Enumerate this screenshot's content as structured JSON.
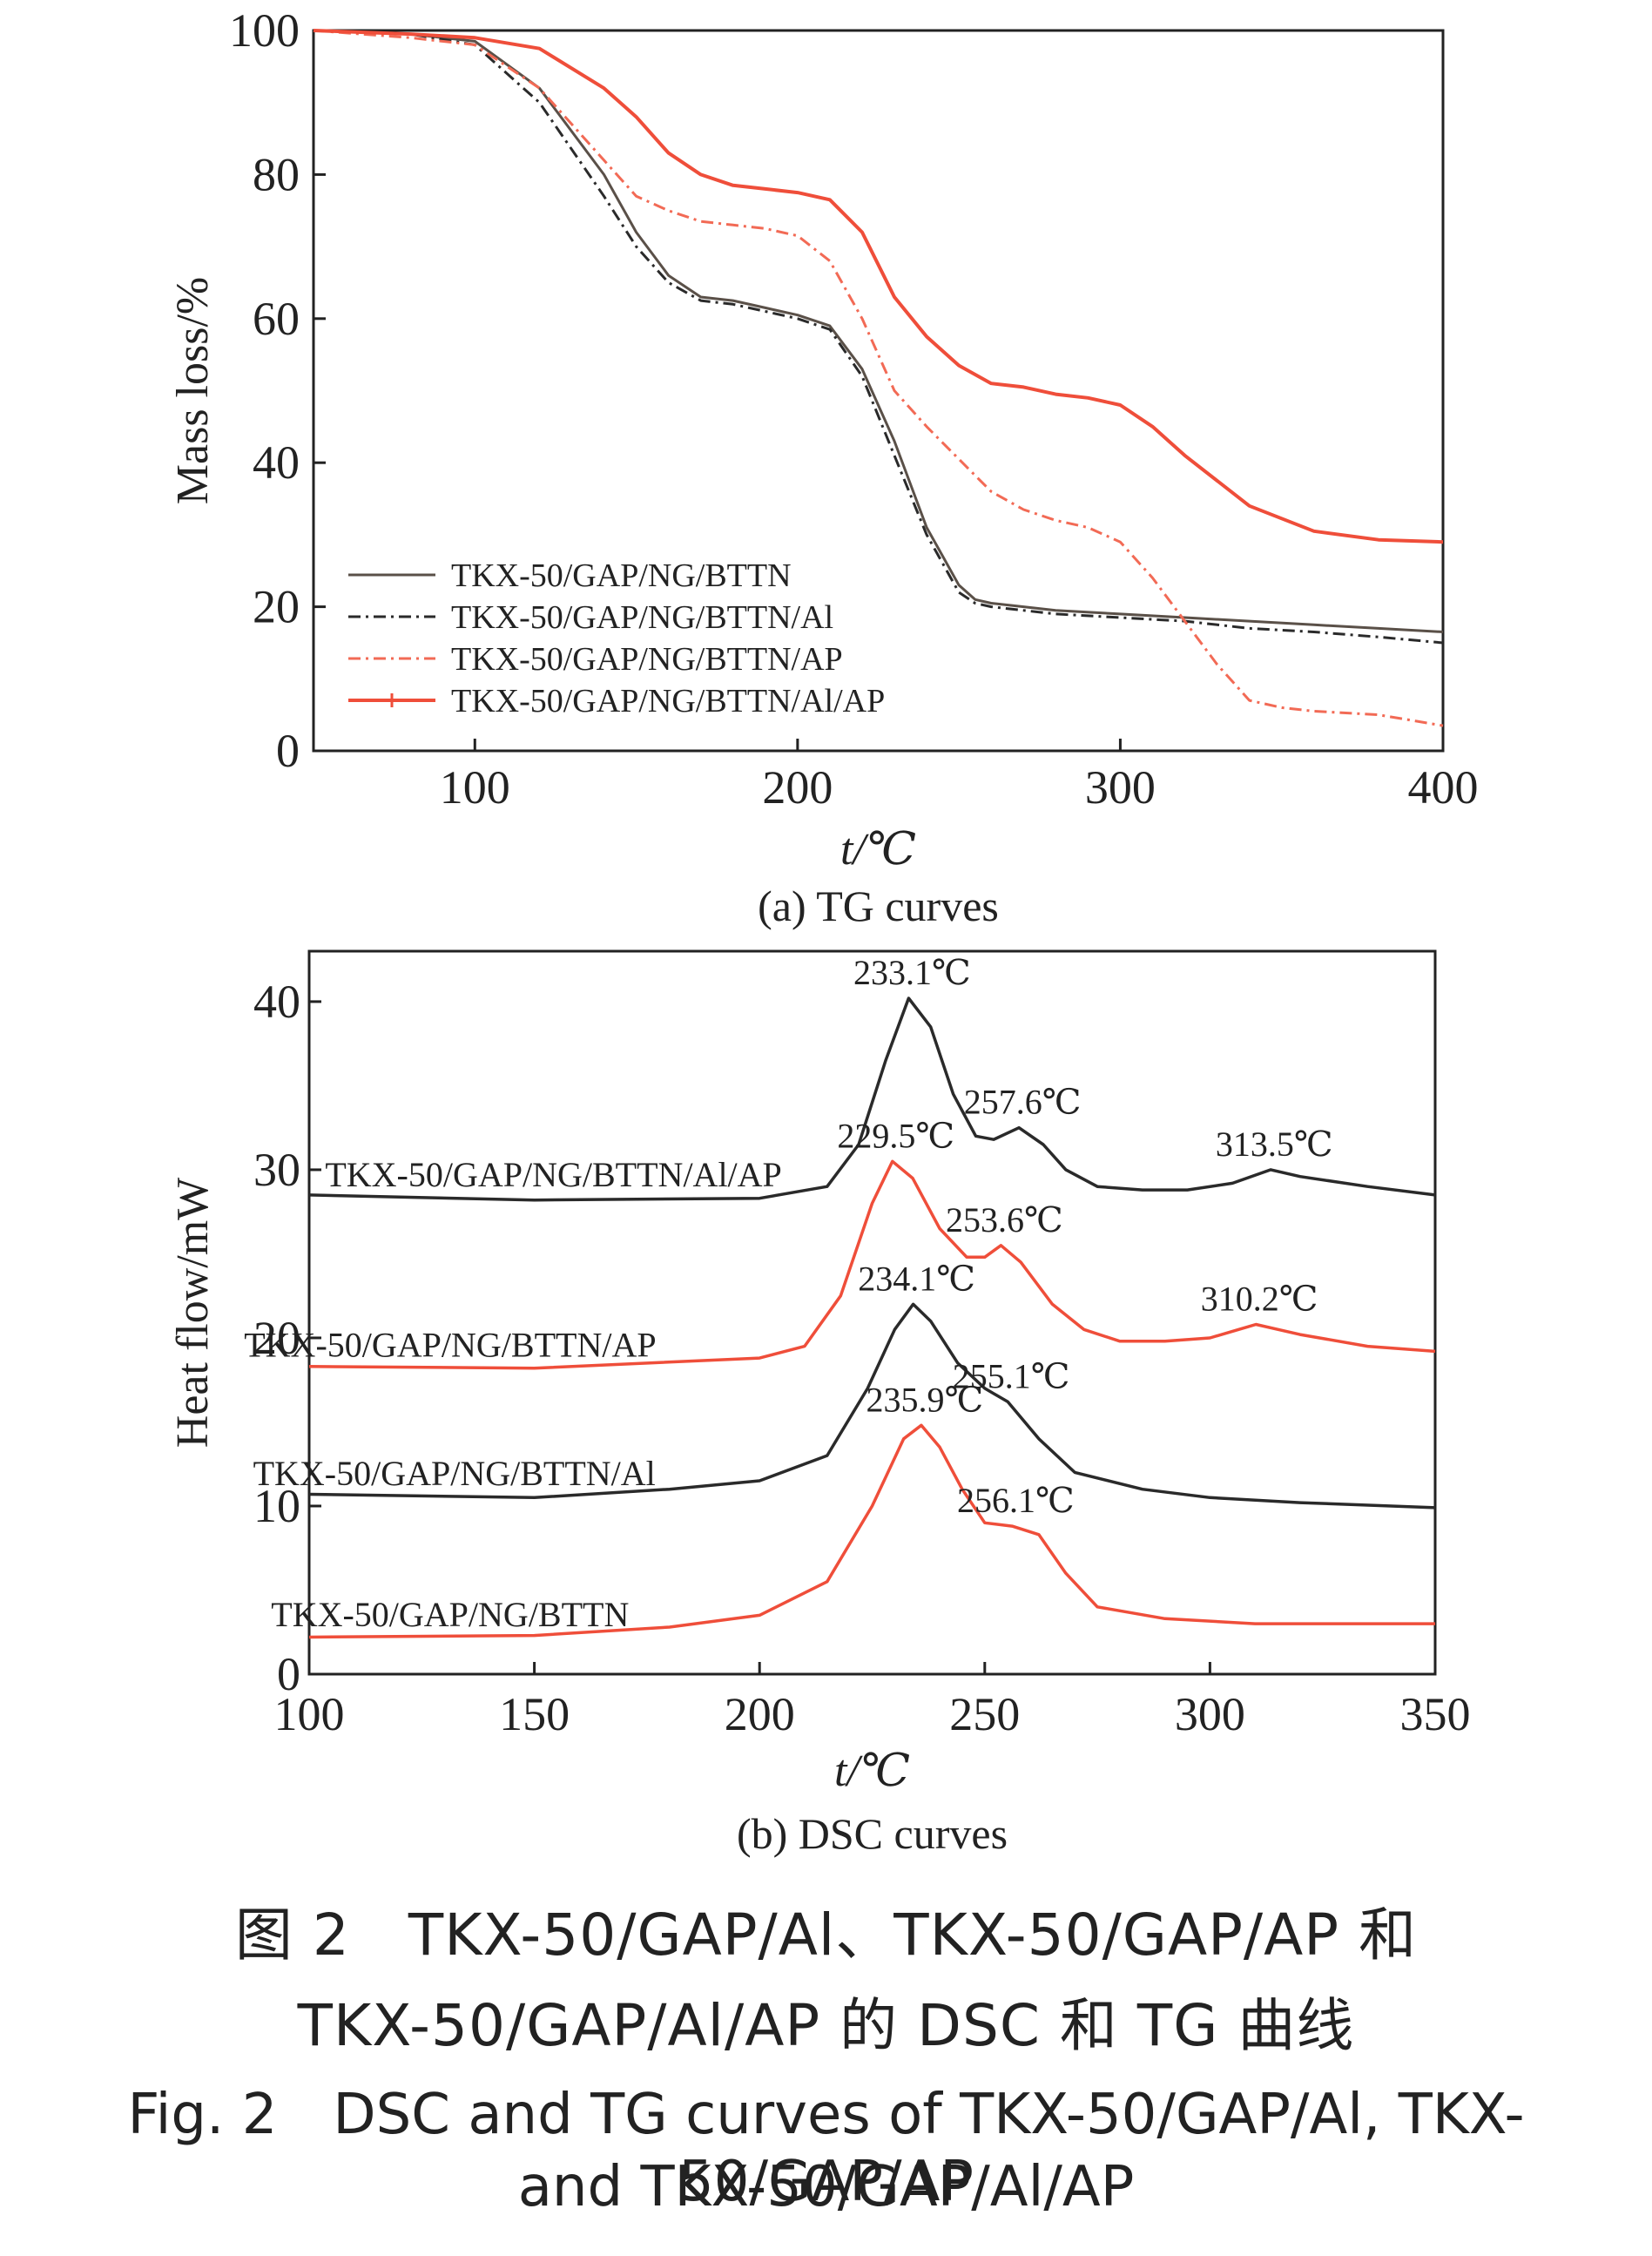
{
  "colors": {
    "axis": "#222222",
    "black": "#2a2a2a",
    "gray": "#5a5048",
    "red": "#ef4e3a",
    "light_red": "#f26a55"
  },
  "chart_data": [
    {
      "type": "line",
      "caption": "(a) TG curves",
      "xlabel": "t/℃",
      "ylabel": "Mass loss/%",
      "xlim": [
        50,
        400
      ],
      "ylim": [
        0,
        100
      ],
      "x_ticks": [
        100,
        200,
        300,
        400
      ],
      "y_ticks": [
        0,
        20,
        40,
        60,
        80,
        100
      ],
      "grid": false,
      "legend": "bottom-left",
      "series": [
        {
          "name": "TKX-50/GAP/NG/BTTN",
          "style": "solid",
          "color": "#5a5048",
          "x": [
            50,
            80,
            100,
            120,
            140,
            150,
            160,
            170,
            180,
            190,
            200,
            210,
            220,
            230,
            240,
            250,
            255,
            260,
            280,
            300,
            320,
            340,
            360,
            380,
            400
          ],
          "y": [
            100,
            99.5,
            98.5,
            92,
            80,
            72,
            66,
            63,
            62.5,
            61.5,
            60.5,
            59,
            53,
            43,
            31,
            23,
            21,
            20.5,
            19.5,
            19,
            18.5,
            18,
            17.5,
            17,
            16.5
          ]
        },
        {
          "name": "TKX-50/GAP/NG/BTTN/Al",
          "style": "dashdot",
          "color": "#2a2a2a",
          "x": [
            50,
            80,
            100,
            120,
            140,
            150,
            160,
            170,
            180,
            190,
            200,
            210,
            220,
            230,
            240,
            250,
            255,
            260,
            280,
            300,
            320,
            340,
            360,
            380,
            400
          ],
          "y": [
            100,
            99.5,
            98,
            90,
            77,
            70,
            65,
            62.5,
            62,
            61,
            60,
            58.5,
            52,
            41,
            30,
            22,
            20.5,
            20,
            19,
            18.5,
            18,
            17,
            16.5,
            15.8,
            15
          ]
        },
        {
          "name": "TKX-50/GAP/NG/BTTN/AP",
          "style": "dashdot",
          "color": "#f26a55",
          "x": [
            50,
            80,
            100,
            120,
            140,
            150,
            160,
            170,
            180,
            190,
            200,
            210,
            220,
            230,
            240,
            250,
            260,
            270,
            280,
            290,
            300,
            310,
            320,
            330,
            340,
            350,
            360,
            380,
            400
          ],
          "y": [
            100,
            99,
            98,
            92,
            82,
            77,
            75,
            73.5,
            73,
            72.5,
            71.5,
            68,
            60,
            50,
            45,
            40.5,
            36,
            33.5,
            32,
            31,
            29,
            24,
            18,
            12,
            7,
            6,
            5.5,
            5,
            3.5
          ]
        },
        {
          "name": "TKX-50/GAP/NG/BTTN/Al/AP",
          "style": "solid",
          "color": "#ef4e3a",
          "x": [
            50,
            80,
            100,
            120,
            140,
            150,
            160,
            170,
            180,
            190,
            200,
            210,
            220,
            230,
            240,
            250,
            260,
            270,
            280,
            290,
            300,
            310,
            320,
            340,
            360,
            380,
            400
          ],
          "y": [
            100,
            99.5,
            99,
            97.5,
            92,
            88,
            83,
            80,
            78.5,
            78,
            77.5,
            76.5,
            72,
            63,
            57.5,
            53.5,
            51,
            50.5,
            49.5,
            49,
            48,
            45,
            41,
            34,
            30.5,
            29.3,
            29
          ]
        }
      ]
    },
    {
      "type": "line",
      "caption": "(b) DSC curves",
      "xlabel": "t/℃",
      "ylabel": "Heat flow/mW",
      "xlim": [
        100,
        350
      ],
      "ylim": [
        0,
        43
      ],
      "x_ticks": [
        100,
        150,
        200,
        250,
        300,
        350
      ],
      "y_ticks": [
        0,
        10,
        20,
        30,
        40
      ],
      "grid": false,
      "series": [
        {
          "name": "TKX-50/GAP/NG/BTTN/Al/AP",
          "color": "#2a2a2a",
          "x": [
            100,
            150,
            200,
            215,
            222,
            228,
            233.1,
            238,
            243,
            248,
            252,
            257.6,
            263,
            268,
            275,
            285,
            295,
            305,
            313.5,
            320,
            335,
            350
          ],
          "y": [
            28.5,
            28.2,
            28.3,
            29,
            31.5,
            36.5,
            40.2,
            38.5,
            34.5,
            32,
            31.8,
            32.5,
            31.5,
            30,
            29,
            28.8,
            28.8,
            29.2,
            30,
            29.6,
            29,
            28.5
          ],
          "peaks": [
            {
              "x": 233.1,
              "label": "233.1℃"
            },
            {
              "x": 257.6,
              "label": "257.6℃"
            },
            {
              "x": 313.5,
              "label": "313.5℃"
            }
          ]
        },
        {
          "name": "TKX-50/GAP/NG/BTTN/AP",
          "color": "#ef4e3a",
          "x": [
            100,
            150,
            200,
            210,
            218,
            225,
            229.5,
            234,
            240,
            246,
            250,
            253.6,
            258,
            265,
            272,
            280,
            290,
            300,
            310.2,
            320,
            335,
            350
          ],
          "y": [
            18.3,
            18.2,
            18.8,
            19.5,
            22.5,
            28,
            30.5,
            29.5,
            26.5,
            24.8,
            24.8,
            25.5,
            24.5,
            22,
            20.5,
            19.8,
            19.8,
            20,
            20.8,
            20.2,
            19.5,
            19.2
          ],
          "peaks": [
            {
              "x": 229.5,
              "label": "229.5℃"
            },
            {
              "x": 253.6,
              "label": "253.6℃"
            },
            {
              "x": 310.2,
              "label": "310.2℃"
            }
          ]
        },
        {
          "name": "TKX-50/GAP/NG/BTTN/Al",
          "color": "#2a2a2a",
          "x": [
            100,
            150,
            180,
            200,
            215,
            224,
            230,
            234.1,
            238,
            244,
            250,
            255.1,
            262,
            270,
            285,
            300,
            320,
            350
          ],
          "y": [
            10.7,
            10.5,
            11,
            11.5,
            13,
            17,
            20.5,
            22,
            21,
            18.5,
            17,
            16.2,
            14,
            12,
            11,
            10.5,
            10.2,
            9.9
          ],
          "peaks": [
            {
              "x": 234.1,
              "label": "234.1℃"
            },
            {
              "x": 255.1,
              "label": "255.1℃"
            }
          ]
        },
        {
          "name": "TKX-50/GAP/NG/BTTN",
          "color": "#ef4e3a",
          "x": [
            100,
            150,
            180,
            200,
            215,
            225,
            232,
            235.9,
            240,
            245,
            250,
            256.1,
            262,
            268,
            275,
            290,
            310,
            330,
            350
          ],
          "y": [
            2.2,
            2.3,
            2.8,
            3.5,
            5.5,
            10,
            14,
            14.8,
            13.5,
            11,
            9,
            8.8,
            8.3,
            6,
            4,
            3.3,
            3,
            3,
            3
          ],
          "peaks": [
            {
              "x": 235.9,
              "label": "235.9℃"
            },
            {
              "x": 256.1,
              "label": "256.1℃"
            }
          ]
        }
      ]
    }
  ],
  "captions": {
    "zh_line1": "图 2　TKX-50/GAP/Al、TKX-50/GAP/AP 和",
    "zh_line2": "TKX-50/GAP/Al/AP 的 DSC 和 TG 曲线",
    "en_line1": "Fig. 2　DSC and TG curves of TKX-50/GAP/Al, TKX-50/GAP/AP",
    "en_line2": "and TKX-50/GAP/Al/AP"
  }
}
